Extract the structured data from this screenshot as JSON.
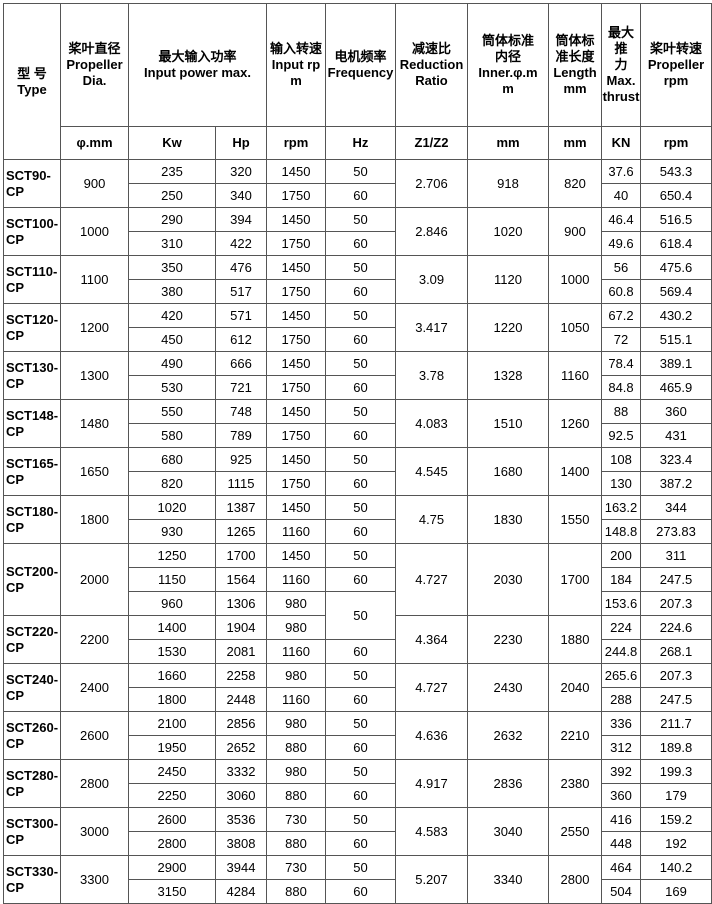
{
  "header": {
    "type": [
      "型 号",
      "Type"
    ],
    "dia": [
      "桨叶直径",
      "Propeller",
      "Dia."
    ],
    "power": [
      "最大输入功率",
      "Input power max."
    ],
    "input_rpm": [
      "输入转速",
      "Input rp",
      "m"
    ],
    "frequency": [
      "电机频率",
      "Frequency"
    ],
    "ratio": [
      "减速比",
      "Reduction",
      "Ratio"
    ],
    "inner": [
      "筒体标准",
      "内径",
      "Inner.φ.m",
      "m"
    ],
    "length": [
      "筒体标",
      "准长度",
      "Length",
      "mm"
    ],
    "thrust": [
      "最大推",
      "力",
      "Max.",
      "thrust"
    ],
    "prop_rpm": [
      "桨叶转速",
      "Propeller",
      "rpm"
    ]
  },
  "units": [
    "φ.mm",
    "Kw",
    "Hp",
    "rpm",
    "Hz",
    "Z1/Z2",
    "mm",
    "mm",
    "KN",
    "rpm"
  ],
  "models": [
    {
      "type": "SCT90-CP",
      "dia": "900",
      "ratio": "2.706",
      "inner": "918",
      "length": "820",
      "rows": [
        {
          "kw": "235",
          "hp": "320",
          "rpm": "1450",
          "hz": "50",
          "thrust": "37.6",
          "prop_rpm": "543.3"
        },
        {
          "kw": "250",
          "hp": "340",
          "rpm": "1750",
          "hz": "60",
          "thrust": "40",
          "prop_rpm": "650.4"
        }
      ]
    },
    {
      "type": "SCT100-CP",
      "dia": "1000",
      "ratio": "2.846",
      "inner": "1020",
      "length": "900",
      "rows": [
        {
          "kw": "290",
          "hp": "394",
          "rpm": "1450",
          "hz": "50",
          "thrust": "46.4",
          "prop_rpm": "516.5"
        },
        {
          "kw": "310",
          "hp": "422",
          "rpm": "1750",
          "hz": "60",
          "thrust": "49.6",
          "prop_rpm": "618.4"
        }
      ]
    },
    {
      "type": "SCT110-CP",
      "dia": "1100",
      "ratio": "3.09",
      "inner": "1120",
      "length": "1000",
      "rows": [
        {
          "kw": "350",
          "hp": "476",
          "rpm": "1450",
          "hz": "50",
          "thrust": "56",
          "prop_rpm": "475.6"
        },
        {
          "kw": "380",
          "hp": "517",
          "rpm": "1750",
          "hz": "60",
          "thrust": "60.8",
          "prop_rpm": "569.4"
        }
      ]
    },
    {
      "type": "SCT120-CP",
      "dia": "1200",
      "ratio": "3.417",
      "inner": "1220",
      "length": "1050",
      "rows": [
        {
          "kw": "420",
          "hp": "571",
          "rpm": "1450",
          "hz": "50",
          "thrust": "67.2",
          "prop_rpm": "430.2"
        },
        {
          "kw": "450",
          "hp": "612",
          "rpm": "1750",
          "hz": "60",
          "thrust": "72",
          "prop_rpm": "515.1"
        }
      ]
    },
    {
      "type": "SCT130-CP",
      "dia": "1300",
      "ratio": "3.78",
      "inner": "1328",
      "length": "1160",
      "rows": [
        {
          "kw": "490",
          "hp": "666",
          "rpm": "1450",
          "hz": "50",
          "thrust": "78.4",
          "prop_rpm": "389.1"
        },
        {
          "kw": "530",
          "hp": "721",
          "rpm": "1750",
          "hz": "60",
          "thrust": "84.8",
          "prop_rpm": "465.9"
        }
      ]
    },
    {
      "type": "SCT148-CP",
      "dia": "1480",
      "ratio": "4.083",
      "inner": "1510",
      "length": "1260",
      "rows": [
        {
          "kw": "550",
          "hp": "748",
          "rpm": "1450",
          "hz": "50",
          "thrust": "88",
          "prop_rpm": "360"
        },
        {
          "kw": "580",
          "hp": "789",
          "rpm": "1750",
          "hz": "60",
          "thrust": "92.5",
          "prop_rpm": "431"
        }
      ]
    },
    {
      "type": "SCT165-CP",
      "dia": "1650",
      "ratio": "4.545",
      "inner": "1680",
      "length": "1400",
      "rows": [
        {
          "kw": "680",
          "hp": "925",
          "rpm": "1450",
          "hz": "50",
          "thrust": "108",
          "prop_rpm": "323.4"
        },
        {
          "kw": "820",
          "hp": "1115",
          "rpm": "1750",
          "hz": "60",
          "thrust": "130",
          "prop_rpm": "387.2"
        }
      ]
    },
    {
      "type": "SCT180-CP",
      "dia": "1800",
      "ratio": "4.75",
      "inner": "1830",
      "length": "1550",
      "rows": [
        {
          "kw": "1020",
          "hp": "1387",
          "rpm": "1450",
          "hz": "50",
          "thrust": "163.2",
          "prop_rpm": "344"
        },
        {
          "kw": "930",
          "hp": "1265",
          "rpm": "1160",
          "hz": "60",
          "thrust": "148.8",
          "prop_rpm": "273.83"
        }
      ]
    },
    {
      "type": "SCT200-CP",
      "dia": "2000",
      "ratio": "4.727",
      "inner": "2030",
      "length": "1700",
      "rows": [
        {
          "kw": "1250",
          "hp": "1700",
          "rpm": "1450",
          "hz": "50",
          "thrust": "200",
          "prop_rpm": "311"
        },
        {
          "kw": "1150",
          "hp": "1564",
          "rpm": "1160",
          "hz": "60",
          "thrust": "184",
          "prop_rpm": "247.5"
        },
        {
          "kw": "960",
          "hp": "1306",
          "rpm": "980",
          "hz": "50",
          "thrust": "153.6",
          "prop_rpm": "207.3"
        }
      ]
    },
    {
      "type": "SCT220-CP",
      "dia": "2200",
      "ratio": "4.364",
      "inner": "2230",
      "length": "1880",
      "rows": [
        {
          "kw": "1400",
          "hp": "1904",
          "rpm": "980",
          "hz": null,
          "thrust": "224",
          "prop_rpm": "224.6"
        },
        {
          "kw": "1530",
          "hp": "2081",
          "rpm": "1160",
          "hz": "60",
          "thrust": "244.8",
          "prop_rpm": "268.1"
        }
      ]
    },
    {
      "type": "SCT240-CP",
      "dia": "2400",
      "ratio": "4.727",
      "inner": "2430",
      "length": "2040",
      "rows": [
        {
          "kw": "1660",
          "hp": "2258",
          "rpm": "980",
          "hz": "50",
          "thrust": "265.6",
          "prop_rpm": "207.3"
        },
        {
          "kw": "1800",
          "hp": "2448",
          "rpm": "1160",
          "hz": "60",
          "thrust": "288",
          "prop_rpm": "247.5"
        }
      ]
    },
    {
      "type": "SCT260-CP",
      "dia": "2600",
      "ratio": "4.636",
      "inner": "2632",
      "length": "2210",
      "rows": [
        {
          "kw": "2100",
          "hp": "2856",
          "rpm": "980",
          "hz": "50",
          "thrust": "336",
          "prop_rpm": "211.7"
        },
        {
          "kw": "1950",
          "hp": "2652",
          "rpm": "880",
          "hz": "60",
          "thrust": "312",
          "prop_rpm": "189.8"
        }
      ]
    },
    {
      "type": "SCT280-CP",
      "dia": "2800",
      "ratio": "4.917",
      "inner": "2836",
      "length": "2380",
      "rows": [
        {
          "kw": "2450",
          "hp": "3332",
          "rpm": "980",
          "hz": "50",
          "thrust": "392",
          "prop_rpm": "199.3"
        },
        {
          "kw": "2250",
          "hp": "3060",
          "rpm": "880",
          "hz": "60",
          "thrust": "360",
          "prop_rpm": "179"
        }
      ]
    },
    {
      "type": "SCT300-CP",
      "dia": "3000",
      "ratio": "4.583",
      "inner": "3040",
      "length": "2550",
      "rows": [
        {
          "kw": "2600",
          "hp": "3536",
          "rpm": "730",
          "hz": "50",
          "thrust": "416",
          "prop_rpm": "159.2"
        },
        {
          "kw": "2800",
          "hp": "3808",
          "rpm": "880",
          "hz": "60",
          "thrust": "448",
          "prop_rpm": "192"
        }
      ]
    },
    {
      "type": "SCT330-CP",
      "dia": "3300",
      "ratio": "5.207",
      "inner": "3340",
      "length": "2800",
      "rows": [
        {
          "kw": "2900",
          "hp": "3944",
          "rpm": "730",
          "hz": "50",
          "thrust": "464",
          "prop_rpm": "140.2"
        },
        {
          "kw": "3150",
          "hp": "4284",
          "rpm": "880",
          "hz": "60",
          "thrust": "504",
          "prop_rpm": "169"
        }
      ]
    }
  ]
}
